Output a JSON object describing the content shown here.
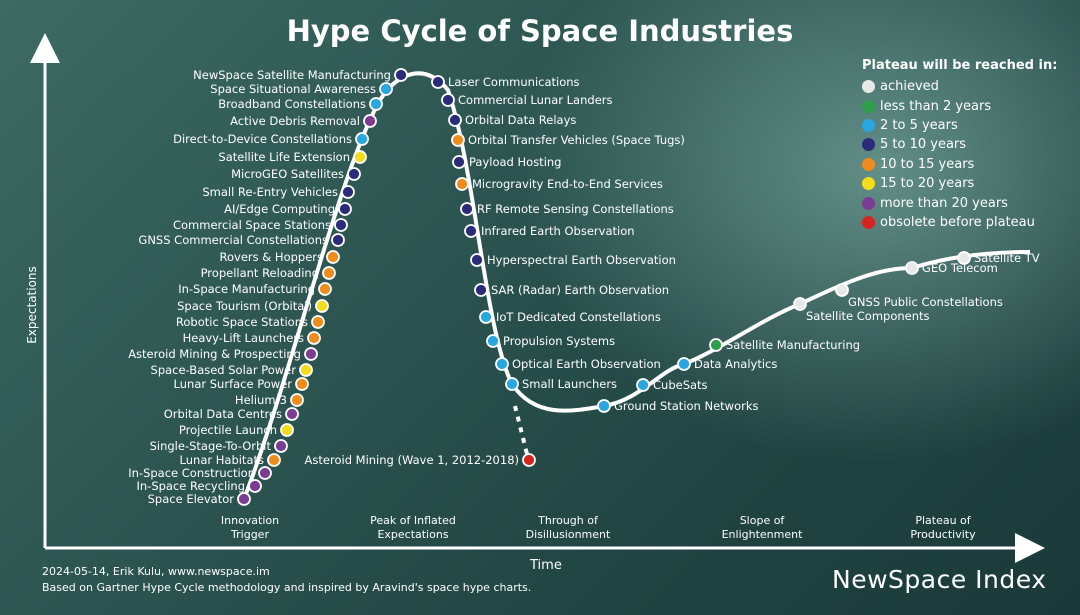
{
  "title": "Hype Cycle of Space Industries",
  "legend": {
    "title": "Plateau will be reached in:",
    "items": [
      {
        "label": "achieved",
        "color": "#e8e8e8"
      },
      {
        "label": "less than 2 years",
        "color": "#2e9e4a"
      },
      {
        "label": "2 to 5 years",
        "color": "#27a6e0"
      },
      {
        "label": "5 to 10 years",
        "color": "#2b2b7a"
      },
      {
        "label": "10 to 15 years",
        "color": "#ee8c1e"
      },
      {
        "label": "15 to 20 years",
        "color": "#f2dc1c"
      },
      {
        "label": "more than 20 years",
        "color": "#7b3c92"
      },
      {
        "label": "obsolete before plateau",
        "color": "#d7241f"
      }
    ]
  },
  "axes": {
    "x_label": "Time",
    "y_label": "Expectations"
  },
  "phases": [
    {
      "line1": "Innovation",
      "line2": "Trigger"
    },
    {
      "line1": "Peak of Inflated",
      "line2": "Expectations"
    },
    {
      "line1": "Through of",
      "line2": "Disillusionment"
    },
    {
      "line1": "Slope of",
      "line2": "Enlightenment"
    },
    {
      "line1": "Plateau of",
      "line2": "Productivity"
    }
  ],
  "technologies": [
    {
      "label": "NewSpace Satellite Manufacturing",
      "plateau": "5 to 10 years"
    },
    {
      "label": "Space Situational Awareness",
      "plateau": "2 to 5 years"
    },
    {
      "label": "Broadband Constellations",
      "plateau": "2 to 5 years"
    },
    {
      "label": "Active Debris Removal",
      "plateau": "more than 20 years"
    },
    {
      "label": "Direct-to-Device Constellations",
      "plateau": "2 to 5 years"
    },
    {
      "label": "Satellite Life Extension",
      "plateau": "15 to 20 years"
    },
    {
      "label": "MicroGEO Satellites",
      "plateau": "5 to 10 years"
    },
    {
      "label": "Small Re-Entry Vehicles",
      "plateau": "5 to 10 years"
    },
    {
      "label": "AI/Edge Computing",
      "plateau": "5 to 10 years"
    },
    {
      "label": "Commercial Space Stations",
      "plateau": "5 to 10 years"
    },
    {
      "label": "GNSS Commercial Constellations",
      "plateau": "5 to 10 years"
    },
    {
      "label": "Rovers & Hoppers",
      "plateau": "10 to 15 years"
    },
    {
      "label": "Propellant Reloading",
      "plateau": "10 to 15 years"
    },
    {
      "label": "In-Space Manufacturing",
      "plateau": "10 to 15 years"
    },
    {
      "label": "Space Tourism (Orbital)",
      "plateau": "15 to 20 years"
    },
    {
      "label": "Robotic Space Stations",
      "plateau": "10 to 15 years"
    },
    {
      "label": "Heavy-Lift Launchers",
      "plateau": "10 to 15 years"
    },
    {
      "label": "Asteroid Mining & Prospecting",
      "plateau": "more than 20 years"
    },
    {
      "label": "Space-Based Solar Power",
      "plateau": "15 to 20 years"
    },
    {
      "label": "Lunar Surface Power",
      "plateau": "10 to 15 years"
    },
    {
      "label": "Helium-3",
      "plateau": "10 to 15 years"
    },
    {
      "label": "Orbital Data Centres",
      "plateau": "more than 20 years"
    },
    {
      "label": "Projectile Launch",
      "plateau": "15 to 20 years"
    },
    {
      "label": "Single-Stage-To-Orbit",
      "plateau": "more than 20 years"
    },
    {
      "label": "Lunar Habitats",
      "plateau": "10 to 15 years"
    },
    {
      "label": "In-Space Construction",
      "plateau": "more than 20 years"
    },
    {
      "label": "In-Space Recycling",
      "plateau": "more than 20 years"
    },
    {
      "label": "Space Elevator",
      "plateau": "more than 20 years"
    },
    {
      "label": "Laser Communications",
      "plateau": "5 to 10 years"
    },
    {
      "label": "Commercial Lunar Landers",
      "plateau": "5 to 10 years"
    },
    {
      "label": "Orbital Data Relays",
      "plateau": "5 to 10 years"
    },
    {
      "label": "Orbital Transfer Vehicles (Space Tugs)",
      "plateau": "10 to 15 years"
    },
    {
      "label": "Payload Hosting",
      "plateau": "5 to 10 years"
    },
    {
      "label": "Microgravity End-to-End Services",
      "plateau": "10 to 15 years"
    },
    {
      "label": "RF Remote Sensing Constellations",
      "plateau": "5 to 10 years"
    },
    {
      "label": "Infrared Earth Observation",
      "plateau": "5 to 10 years"
    },
    {
      "label": "Hyperspectral Earth Observation",
      "plateau": "5 to 10 years"
    },
    {
      "label": "SAR (Radar) Earth Observation",
      "plateau": "5 to 10 years"
    },
    {
      "label": "IoT Dedicated Constellations",
      "plateau": "2 to 5 years"
    },
    {
      "label": "Propulsion Systems",
      "plateau": "2 to 5 years"
    },
    {
      "label": "Optical Earth Observation",
      "plateau": "2 to 5 years"
    },
    {
      "label": "Small Launchers",
      "plateau": "2 to 5 years"
    },
    {
      "label": "Ground Station Networks",
      "plateau": "2 to 5 years"
    },
    {
      "label": "CubeSats",
      "plateau": "2 to 5 years"
    },
    {
      "label": "Data Analytics",
      "plateau": "2 to 5 years"
    },
    {
      "label": "Satellite Manufacturing",
      "plateau": "less than 2 years"
    },
    {
      "label": "Satellite Components",
      "plateau": "achieved"
    },
    {
      "label": "GNSS Public Constellations",
      "plateau": "achieved"
    },
    {
      "label": "GEO Telecom",
      "plateau": "achieved"
    },
    {
      "label": "Satellite TV",
      "plateau": "achieved"
    },
    {
      "label": "Asteroid Mining (Wave 1, 2012-2018)",
      "plateau": "obsolete before plateau"
    }
  ],
  "footer": {
    "line1": "2024-05-14, Erik Kulu, www.newspace.im",
    "line2": "Based on Gartner Hype Cycle methodology and inspired by Aravind's space hype charts.",
    "brand": "NewSpace Index"
  }
}
